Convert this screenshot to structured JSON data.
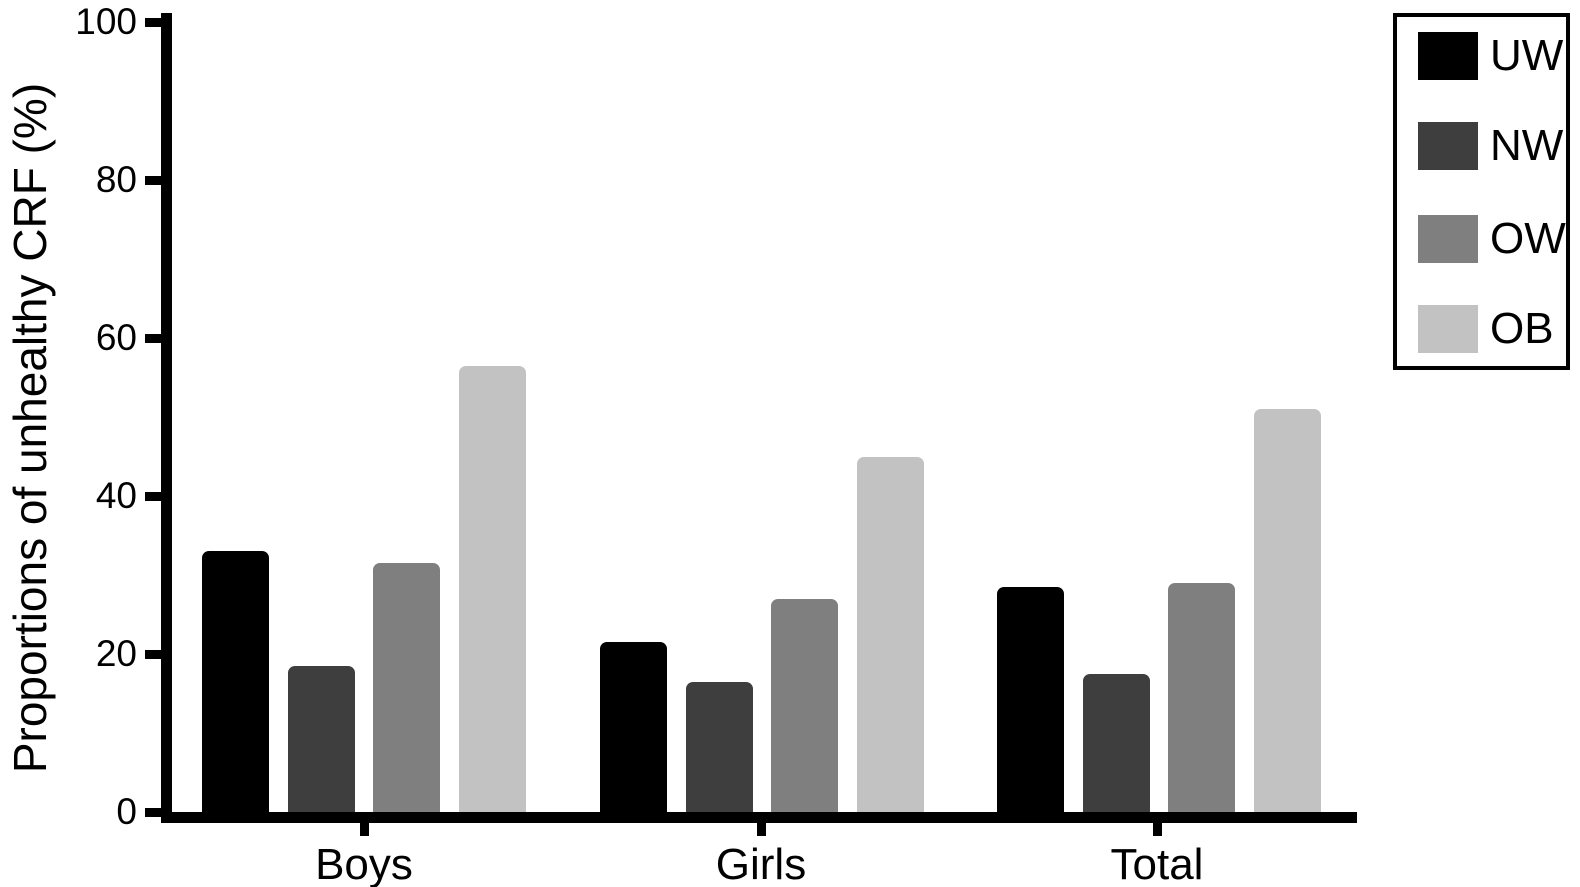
{
  "figure": {
    "background": "#ffffff",
    "text_color": "#000000"
  },
  "chart_data": {
    "type": "bar",
    "title": "",
    "xlabel": "",
    "ylabel": "Proportions of unhealthy CRF (%)",
    "categories": [
      "Boys",
      "Girls",
      "Total"
    ],
    "series": [
      {
        "name": "UW",
        "color": "#000000",
        "values": [
          33,
          21.5,
          28.5
        ]
      },
      {
        "name": "NW",
        "color": "#3e3e3e",
        "values": [
          18.5,
          16.5,
          17.5
        ]
      },
      {
        "name": "OW",
        "color": "#7f7f7f",
        "values": [
          31.5,
          27,
          29
        ]
      },
      {
        "name": "OB",
        "color": "#c2c2c2",
        "values": [
          56.5,
          45,
          51
        ]
      }
    ],
    "ylim": [
      0,
      100
    ],
    "yticks": [
      0,
      20,
      40,
      60,
      80,
      100
    ],
    "grid": false,
    "legend_position": "top-right",
    "legend_entries": [
      "UW",
      "NW",
      "OW",
      "OB"
    ]
  }
}
